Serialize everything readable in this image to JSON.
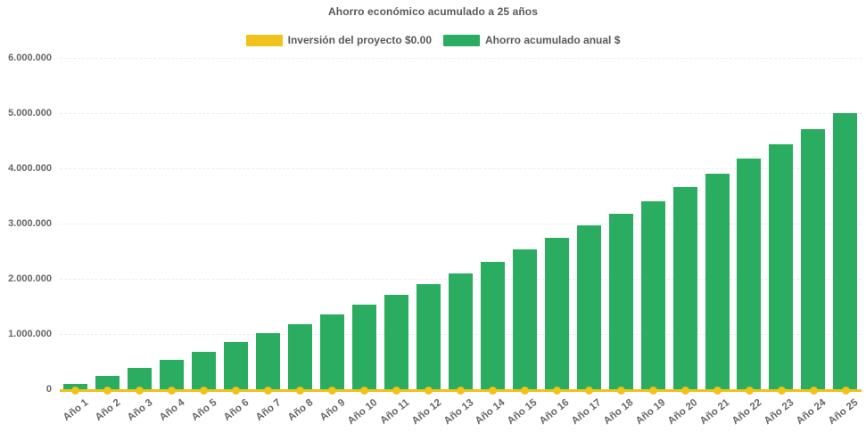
{
  "title": "Ahorro económico acumulado a 25 años",
  "legend": {
    "items": [
      {
        "label": "Inversión del proyecto $0.00",
        "color": "#F1C21B"
      },
      {
        "label": "Ahorro acumulado anual $",
        "color": "#2BAD61"
      }
    ]
  },
  "colors": {
    "background": "#ffffff",
    "bar_green": "#2BAD61",
    "line_yellow": "#F1C21B",
    "title_text": "#595959",
    "axis_text": "#666666"
  },
  "chart_data": {
    "type": "bar",
    "title": "Ahorro económico acumulado a 25 años",
    "categories": [
      "Año 1",
      "Año 2",
      "Año 3",
      "Año 4",
      "Año 5",
      "Año 6",
      "Año 7",
      "Año 8",
      "Año 9",
      "Año 10",
      "Año 11",
      "Año 12",
      "Año 13",
      "Año 14",
      "Año 15",
      "Año 16",
      "Año 17",
      "Año 18",
      "Año 19",
      "Año 20",
      "Año 21",
      "Año 22",
      "Año 23",
      "Año 24",
      "Año 25"
    ],
    "series": [
      {
        "name": "Inversión del proyecto $0.00",
        "type": "line",
        "color": "#F1C21B",
        "values": [
          0,
          0,
          0,
          0,
          0,
          0,
          0,
          0,
          0,
          0,
          0,
          0,
          0,
          0,
          0,
          0,
          0,
          0,
          0,
          0,
          0,
          0,
          0,
          0,
          0
        ]
      },
      {
        "name": "Ahorro acumulado anual $",
        "type": "bar",
        "color": "#2BAD61",
        "values": [
          140000,
          290000,
          430000,
          580000,
          730000,
          900000,
          1060000,
          1230000,
          1400000,
          1580000,
          1760000,
          1950000,
          2150000,
          2360000,
          2580000,
          2790000,
          3020000,
          3230000,
          3460000,
          3710000,
          3960000,
          4220000,
          4480000,
          4760000,
          5050000
        ]
      }
    ],
    "xlabel": "",
    "ylabel": "",
    "ylim": [
      0,
      6000000
    ],
    "ytick_step": 1000000,
    "ytick_labels": [
      "0",
      "1.000.000",
      "2.000.000",
      "3.000.000",
      "4.000.000",
      "5.000.000",
      "6.000.000"
    ],
    "grid": "faint horizontal dashed",
    "legend_position": "top-center",
    "x_label_rotation_deg": -38
  }
}
